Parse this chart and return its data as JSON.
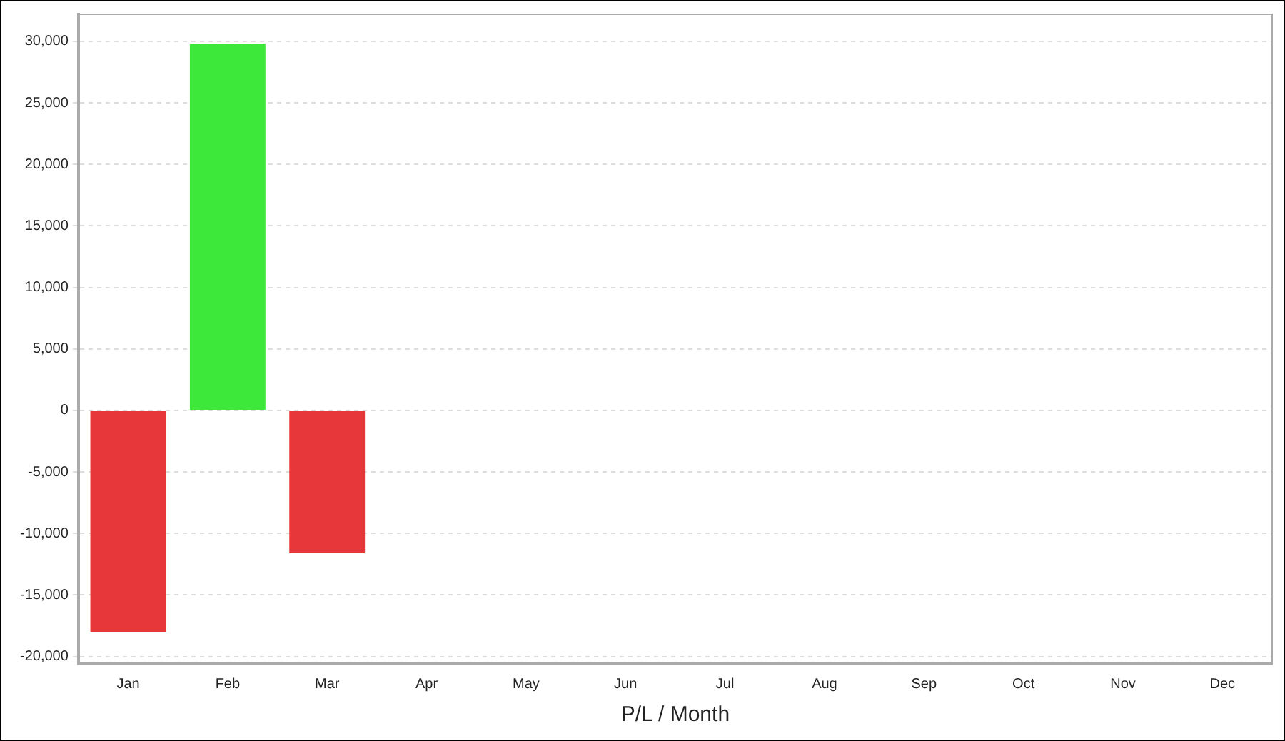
{
  "chart_data": {
    "type": "bar",
    "xlabel": "P/L / Month",
    "categories": [
      "Jan",
      "Feb",
      "Mar",
      "Apr",
      "May",
      "Jun",
      "Jul",
      "Aug",
      "Sep",
      "Oct",
      "Nov",
      "Dec"
    ],
    "values": [
      -18000,
      29800,
      -11600,
      null,
      null,
      null,
      null,
      null,
      null,
      null,
      null,
      null
    ],
    "colors": [
      "#e8373b",
      "#3de83a",
      "#e8373b",
      "#e8373b",
      "#e8373b",
      "#e8373b",
      "#e8373b",
      "#e8373b",
      "#e8373b",
      "#e8373b",
      "#e8373b",
      "#e8373b"
    ],
    "ylim": [
      -20600,
      32200
    ],
    "yticks": [
      {
        "value": -20000,
        "label": "-20,000"
      },
      {
        "value": -15000,
        "label": "-15,000"
      },
      {
        "value": -10000,
        "label": "-10,000"
      },
      {
        "value": -5000,
        "label": "-5,000"
      },
      0,
      {
        "value": 5000,
        "label": "5,000"
      },
      {
        "value": 10000,
        "label": "10,000"
      },
      {
        "value": 15000,
        "label": "15,000"
      },
      {
        "value": 20000,
        "label": "20,000"
      },
      {
        "value": 25000,
        "label": "25,000"
      },
      {
        "value": 30000,
        "label": "30,000"
      }
    ],
    "grid": "y",
    "legend": false
  }
}
